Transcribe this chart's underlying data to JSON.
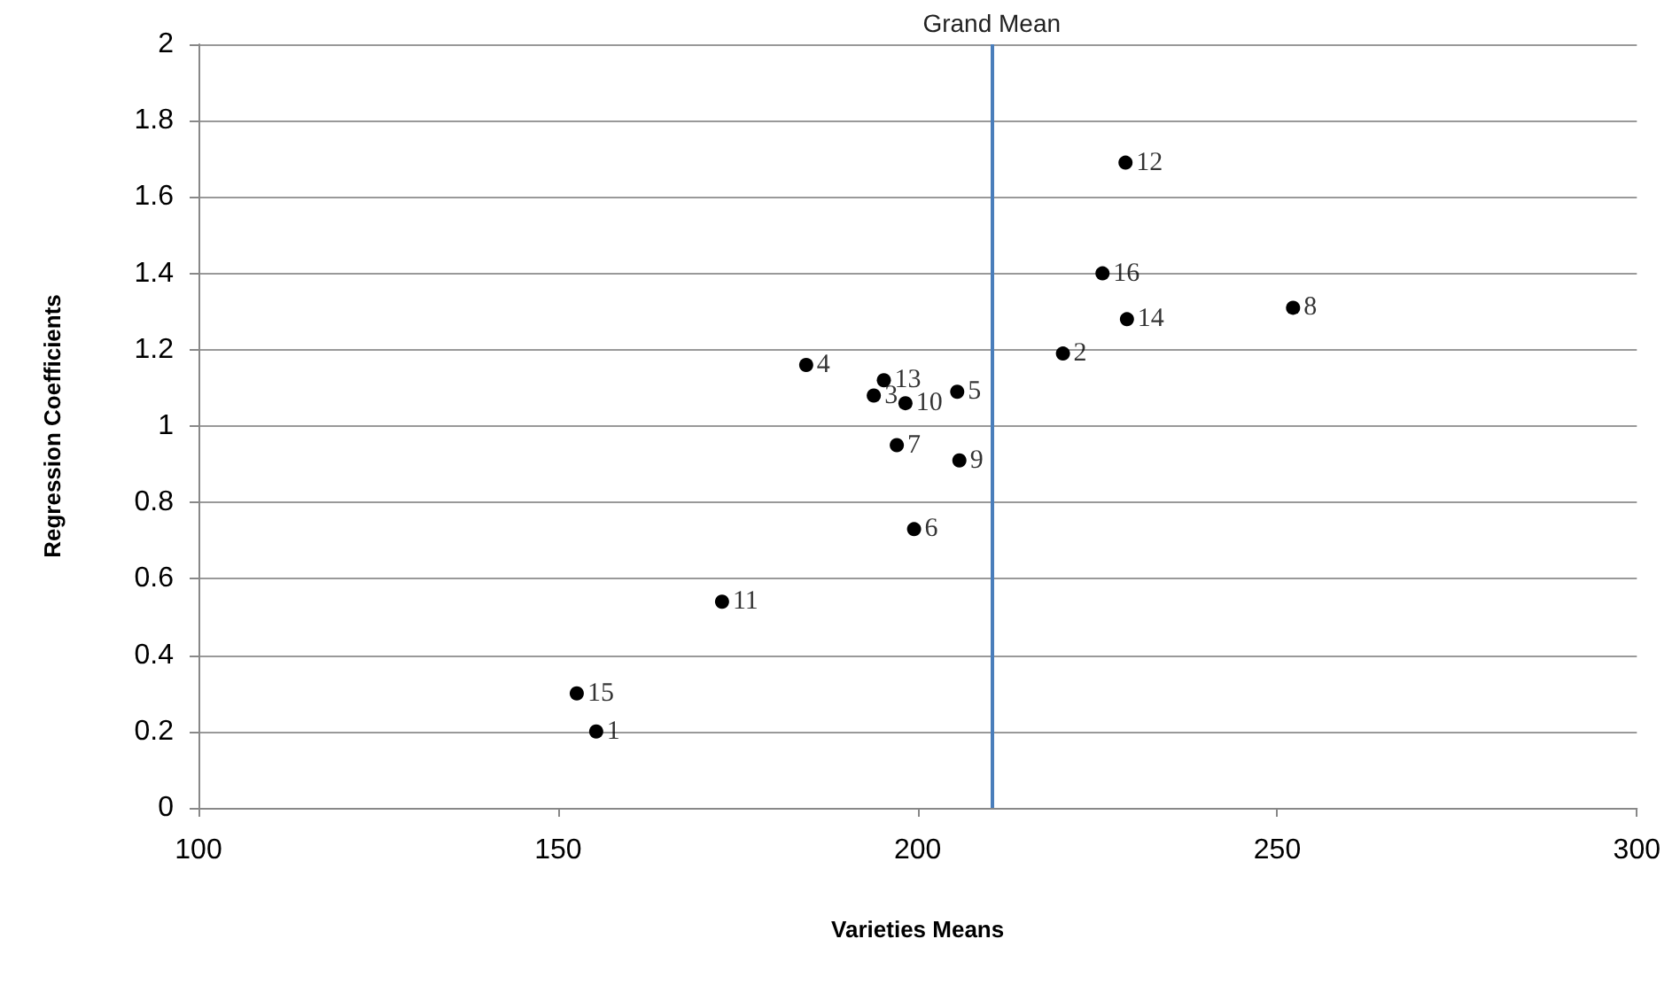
{
  "chart_data": {
    "type": "scatter",
    "xlabel": "Varieties Means",
    "ylabel": "Regression Coefficients",
    "x": [
      155.3,
      220.2,
      193.9,
      184.5,
      205.5,
      199.5,
      197.1,
      252.2,
      205.8,
      198.3,
      172.8,
      228.9,
      195.3,
      229.1,
      152.6,
      225.7
    ],
    "series": [
      {
        "color": "#000000",
        "values": [
          0.2,
          1.19,
          1.08,
          1.16,
          1.09,
          0.73,
          0.95,
          1.31,
          0.91,
          1.06,
          0.54,
          1.69,
          1.12,
          1.28,
          0.3,
          1.4
        ]
      }
    ],
    "xlim": [
      100,
      300
    ],
    "xticks": [
      100,
      150,
      200,
      250,
      300
    ],
    "ylim": [
      0,
      2
    ],
    "yticks": [
      0,
      0.2,
      0.4,
      0.6,
      0.8,
      1,
      1.2,
      1.4,
      1.6,
      1.8,
      2
    ],
    "grid": "y",
    "marker": "circle",
    "ref_lines": [
      {
        "axis": "x",
        "value": 210.3,
        "label": "Grand Mean",
        "color": "#4a7ebb"
      }
    ],
    "annotations": [
      {
        "text": "1",
        "x": 155.3,
        "y": 0.2
      },
      {
        "text": "2",
        "x": 220.2,
        "y": 1.19
      },
      {
        "text": "3",
        "x": 193.9,
        "y": 1.08
      },
      {
        "text": "4",
        "x": 184.5,
        "y": 1.16
      },
      {
        "text": "5",
        "x": 205.5,
        "y": 1.09
      },
      {
        "text": "6",
        "x": 199.5,
        "y": 0.73
      },
      {
        "text": "7",
        "x": 197.1,
        "y": 0.95
      },
      {
        "text": "8",
        "x": 252.2,
        "y": 1.31
      },
      {
        "text": "9",
        "x": 205.8,
        "y": 0.91
      },
      {
        "text": "10",
        "x": 198.3,
        "y": 1.06
      },
      {
        "text": "11",
        "x": 172.8,
        "y": 0.54
      },
      {
        "text": "12",
        "x": 228.9,
        "y": 1.69
      },
      {
        "text": "13",
        "x": 195.3,
        "y": 1.12
      },
      {
        "text": "14",
        "x": 229.1,
        "y": 1.28
      },
      {
        "text": "15",
        "x": 152.6,
        "y": 0.3
      },
      {
        "text": "16",
        "x": 225.7,
        "y": 1.4
      }
    ]
  }
}
